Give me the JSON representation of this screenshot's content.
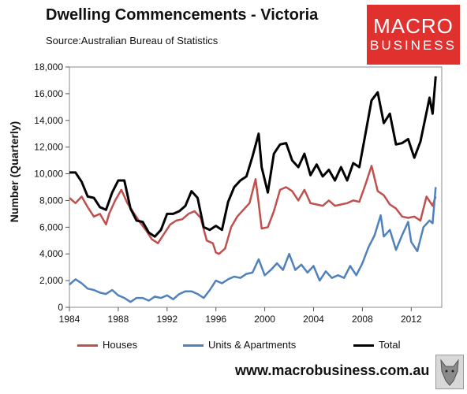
{
  "header": {
    "title": "Dwelling Commencements - Victoria",
    "source": "Source:Australian Bureau of Statistics"
  },
  "logo": {
    "line1": "MACRO",
    "line2": "BUSINESS"
  },
  "footer": {
    "website": "www.macrobusiness.com.au"
  },
  "colors": {
    "houses": "#c0504d",
    "units": "#4f81bd",
    "total": "#000000"
  },
  "chart_data": {
    "type": "line",
    "ylabel": "Number (Quarterly)",
    "xlim": [
      1984,
      2014.5
    ],
    "ylim": [
      0,
      18000
    ],
    "x_ticks": [
      1984,
      1988,
      1992,
      1996,
      2000,
      2004,
      2008,
      2012
    ],
    "x_tick_labels": [
      "1984",
      "1988",
      "1992",
      "1996",
      "2000",
      "2004",
      "2008",
      "2012"
    ],
    "y_ticks": [
      0,
      2000,
      4000,
      6000,
      8000,
      10000,
      12000,
      14000,
      16000,
      18000
    ],
    "y_tick_labels": [
      "0",
      "2,000",
      "4,000",
      "6,000",
      "8,000",
      "10,000",
      "12,000",
      "14,000",
      "16,000",
      "18,000"
    ],
    "grid": false,
    "legend_position": "bottom",
    "series": [
      {
        "name": "Houses",
        "color_key": "houses",
        "points": [
          [
            1984.0,
            8200
          ],
          [
            1984.5,
            7800
          ],
          [
            1985.0,
            8300
          ],
          [
            1985.5,
            7500
          ],
          [
            1986.0,
            6800
          ],
          [
            1986.5,
            7000
          ],
          [
            1987.0,
            6200
          ],
          [
            1987.25,
            7000
          ],
          [
            1987.75,
            8000
          ],
          [
            1988.25,
            8800
          ],
          [
            1988.75,
            7800
          ],
          [
            1989.25,
            7100
          ],
          [
            1989.75,
            6400
          ],
          [
            1990.25,
            5800
          ],
          [
            1990.75,
            5100
          ],
          [
            1991.25,
            4800
          ],
          [
            1991.75,
            5500
          ],
          [
            1992.25,
            6200
          ],
          [
            1992.75,
            6500
          ],
          [
            1993.25,
            6600
          ],
          [
            1993.75,
            7000
          ],
          [
            1994.25,
            7200
          ],
          [
            1994.75,
            6700
          ],
          [
            1995.25,
            5000
          ],
          [
            1995.75,
            4800
          ],
          [
            1996.0,
            4100
          ],
          [
            1996.25,
            4000
          ],
          [
            1996.75,
            4400
          ],
          [
            1997.25,
            6000
          ],
          [
            1997.75,
            6800
          ],
          [
            1998.25,
            7300
          ],
          [
            1998.75,
            7800
          ],
          [
            1999.25,
            9600
          ],
          [
            1999.5,
            7800
          ],
          [
            1999.75,
            5900
          ],
          [
            2000.25,
            6000
          ],
          [
            2000.75,
            7200
          ],
          [
            2001.25,
            8800
          ],
          [
            2001.75,
            9000
          ],
          [
            2002.25,
            8700
          ],
          [
            2002.75,
            8000
          ],
          [
            2003.25,
            8800
          ],
          [
            2003.75,
            7800
          ],
          [
            2004.25,
            7700
          ],
          [
            2004.75,
            7600
          ],
          [
            2005.25,
            8000
          ],
          [
            2005.75,
            7600
          ],
          [
            2006.25,
            7700
          ],
          [
            2006.75,
            7800
          ],
          [
            2007.25,
            8000
          ],
          [
            2007.75,
            7900
          ],
          [
            2008.25,
            9200
          ],
          [
            2008.75,
            10600
          ],
          [
            2009.25,
            8700
          ],
          [
            2009.75,
            8400
          ],
          [
            2010.25,
            7700
          ],
          [
            2010.75,
            7400
          ],
          [
            2011.25,
            6800
          ],
          [
            2011.75,
            6700
          ],
          [
            2012.25,
            6800
          ],
          [
            2012.75,
            6500
          ],
          [
            2013.25,
            8300
          ],
          [
            2013.75,
            7600
          ],
          [
            2014.0,
            8300
          ]
        ]
      },
      {
        "name": "Units & Apartments",
        "color_key": "units",
        "points": [
          [
            1984.0,
            1700
          ],
          [
            1984.5,
            2100
          ],
          [
            1985.0,
            1800
          ],
          [
            1985.5,
            1400
          ],
          [
            1986.0,
            1300
          ],
          [
            1986.5,
            1100
          ],
          [
            1987.0,
            1000
          ],
          [
            1987.5,
            1300
          ],
          [
            1988.0,
            900
          ],
          [
            1988.5,
            700
          ],
          [
            1989.0,
            400
          ],
          [
            1989.5,
            700
          ],
          [
            1990.0,
            700
          ],
          [
            1990.5,
            500
          ],
          [
            1991.0,
            800
          ],
          [
            1991.5,
            700
          ],
          [
            1992.0,
            900
          ],
          [
            1992.5,
            600
          ],
          [
            1993.0,
            1000
          ],
          [
            1993.5,
            1200
          ],
          [
            1994.0,
            1200
          ],
          [
            1994.5,
            1000
          ],
          [
            1995.0,
            700
          ],
          [
            1995.5,
            1300
          ],
          [
            1996.0,
            2000
          ],
          [
            1996.5,
            1800
          ],
          [
            1997.0,
            2100
          ],
          [
            1997.5,
            2300
          ],
          [
            1998.0,
            2200
          ],
          [
            1998.5,
            2500
          ],
          [
            1999.0,
            2600
          ],
          [
            1999.5,
            3600
          ],
          [
            2000.0,
            2400
          ],
          [
            2000.5,
            2800
          ],
          [
            2001.0,
            3300
          ],
          [
            2001.5,
            2800
          ],
          [
            2002.0,
            4000
          ],
          [
            2002.5,
            2800
          ],
          [
            2003.0,
            3200
          ],
          [
            2003.5,
            2600
          ],
          [
            2004.0,
            3100
          ],
          [
            2004.5,
            2000
          ],
          [
            2005.0,
            2700
          ],
          [
            2005.5,
            2200
          ],
          [
            2006.0,
            2400
          ],
          [
            2006.5,
            2200
          ],
          [
            2007.0,
            3100
          ],
          [
            2007.5,
            2400
          ],
          [
            2008.0,
            3300
          ],
          [
            2008.5,
            4500
          ],
          [
            2009.0,
            5400
          ],
          [
            2009.5,
            6900
          ],
          [
            2009.75,
            5300
          ],
          [
            2010.25,
            5800
          ],
          [
            2010.75,
            4300
          ],
          [
            2011.25,
            5400
          ],
          [
            2011.75,
            6400
          ],
          [
            2012.0,
            4900
          ],
          [
            2012.5,
            4200
          ],
          [
            2013.0,
            6000
          ],
          [
            2013.5,
            6500
          ],
          [
            2013.75,
            6300
          ],
          [
            2014.0,
            9000
          ]
        ]
      },
      {
        "name": "Total",
        "color_key": "total",
        "points": [
          [
            1984.0,
            10100
          ],
          [
            1984.5,
            10100
          ],
          [
            1985.0,
            9400
          ],
          [
            1985.5,
            8300
          ],
          [
            1986.0,
            8200
          ],
          [
            1986.5,
            7500
          ],
          [
            1987.0,
            7300
          ],
          [
            1987.5,
            8600
          ],
          [
            1988.0,
            9500
          ],
          [
            1988.5,
            9500
          ],
          [
            1989.0,
            7400
          ],
          [
            1989.5,
            6500
          ],
          [
            1990.0,
            6400
          ],
          [
            1990.5,
            5600
          ],
          [
            1991.0,
            5300
          ],
          [
            1991.5,
            5800
          ],
          [
            1992.0,
            7000
          ],
          [
            1992.5,
            7000
          ],
          [
            1993.0,
            7200
          ],
          [
            1993.5,
            7600
          ],
          [
            1994.0,
            8700
          ],
          [
            1994.5,
            8200
          ],
          [
            1995.0,
            6000
          ],
          [
            1995.5,
            5800
          ],
          [
            1996.0,
            6100
          ],
          [
            1996.5,
            5800
          ],
          [
            1997.0,
            7900
          ],
          [
            1997.5,
            9000
          ],
          [
            1998.0,
            9500
          ],
          [
            1998.5,
            9800
          ],
          [
            1999.0,
            11300
          ],
          [
            1999.5,
            13000
          ],
          [
            1999.75,
            10500
          ],
          [
            2000.25,
            8600
          ],
          [
            2000.75,
            11500
          ],
          [
            2001.25,
            12200
          ],
          [
            2001.75,
            12300
          ],
          [
            2002.25,
            11000
          ],
          [
            2002.75,
            10500
          ],
          [
            2003.25,
            11500
          ],
          [
            2003.75,
            9900
          ],
          [
            2004.25,
            10700
          ],
          [
            2004.75,
            9800
          ],
          [
            2005.25,
            10300
          ],
          [
            2005.75,
            9500
          ],
          [
            2006.25,
            10500
          ],
          [
            2006.75,
            9500
          ],
          [
            2007.25,
            10800
          ],
          [
            2007.75,
            10500
          ],
          [
            2008.25,
            13000
          ],
          [
            2008.75,
            15500
          ],
          [
            2009.25,
            16100
          ],
          [
            2009.75,
            13800
          ],
          [
            2010.25,
            14500
          ],
          [
            2010.75,
            12200
          ],
          [
            2011.25,
            12300
          ],
          [
            2011.75,
            12600
          ],
          [
            2012.25,
            11200
          ],
          [
            2012.75,
            12400
          ],
          [
            2013.25,
            14600
          ],
          [
            2013.5,
            15700
          ],
          [
            2013.75,
            14500
          ],
          [
            2014.0,
            17300
          ]
        ]
      }
    ]
  }
}
